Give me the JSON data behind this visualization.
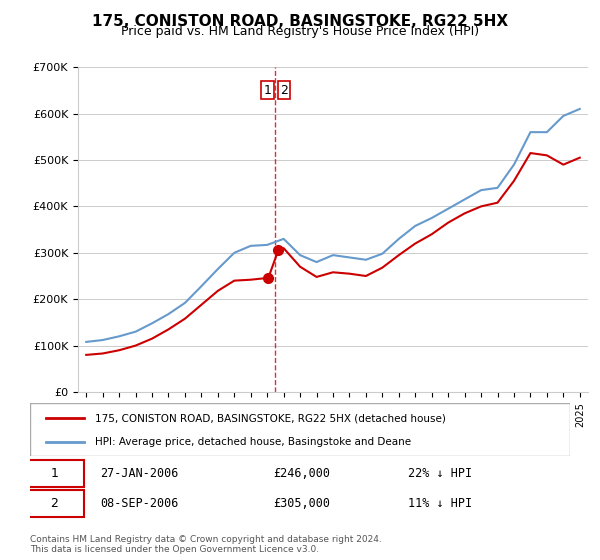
{
  "title": "175, CONISTON ROAD, BASINGSTOKE, RG22 5HX",
  "subtitle": "Price paid vs. HM Land Registry's House Price Index (HPI)",
  "ylabel_vals": [
    "£0",
    "£100K",
    "£200K",
    "£300K",
    "£400K",
    "£500K",
    "£600K",
    "£700K"
  ],
  "ylim": [
    0,
    700000
  ],
  "xlim_start": 1995.0,
  "xlim_end": 2025.5,
  "hpi_color": "#6699cc",
  "price_color": "#cc0000",
  "dashed_line_color": "#cc0000",
  "point1_date": "27-JAN-2006",
  "point1_price": 246000,
  "point1_hpi_pct": "22% ↓ HPI",
  "point1_label": "1",
  "point2_date": "08-SEP-2006",
  "point2_price": 305000,
  "point2_hpi_pct": "11% ↓ HPI",
  "point2_label": "2",
  "legend_line1": "175, CONISTON ROAD, BASINGSTOKE, RG22 5HX (detached house)",
  "legend_line2": "HPI: Average price, detached house, Basingstoke and Deane",
  "footer": "Contains HM Land Registry data © Crown copyright and database right 2024.\nThis data is licensed under the Open Government Licence v3.0.",
  "point1_x": 2006.07,
  "point2_x": 2006.67,
  "vline_x": 2006.5
}
